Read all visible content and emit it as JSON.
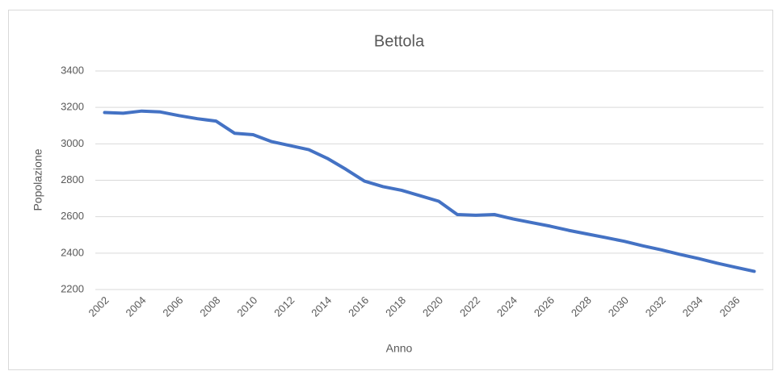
{
  "chart_data": {
    "type": "line",
    "title": "Bettola",
    "x_label": "Anno",
    "y_label": "Popolazione",
    "categories": [
      "2002",
      null,
      "2004",
      null,
      "2006",
      null,
      "2008",
      null,
      "2010",
      null,
      "2012",
      null,
      "2014",
      null,
      "2016",
      null,
      "2018",
      null,
      "2020",
      null,
      "2022",
      null,
      "2024",
      null,
      "2026",
      null,
      "2028",
      null,
      "2030",
      null,
      "2032",
      null,
      "2034",
      null,
      "2036",
      null
    ],
    "series": [
      {
        "name": "Popolazione",
        "color": "#4472c4",
        "values": [
          3172,
          3168,
          3180,
          3175,
          3155,
          3138,
          3125,
          3058,
          3050,
          3012,
          2990,
          2968,
          2920,
          2860,
          2795,
          2765,
          2745,
          2715,
          2685,
          2612,
          2608,
          2612,
          2588,
          2568,
          2548,
          2525,
          2505,
          2485,
          2465,
          2440,
          2418,
          2393,
          2370,
          2345,
          2322,
          2300
        ]
      }
    ],
    "ylim": [
      2200,
      3400
    ],
    "yticks": [
      2200,
      2400,
      2600,
      2800,
      3000,
      3200,
      3400
    ],
    "grid": true
  }
}
